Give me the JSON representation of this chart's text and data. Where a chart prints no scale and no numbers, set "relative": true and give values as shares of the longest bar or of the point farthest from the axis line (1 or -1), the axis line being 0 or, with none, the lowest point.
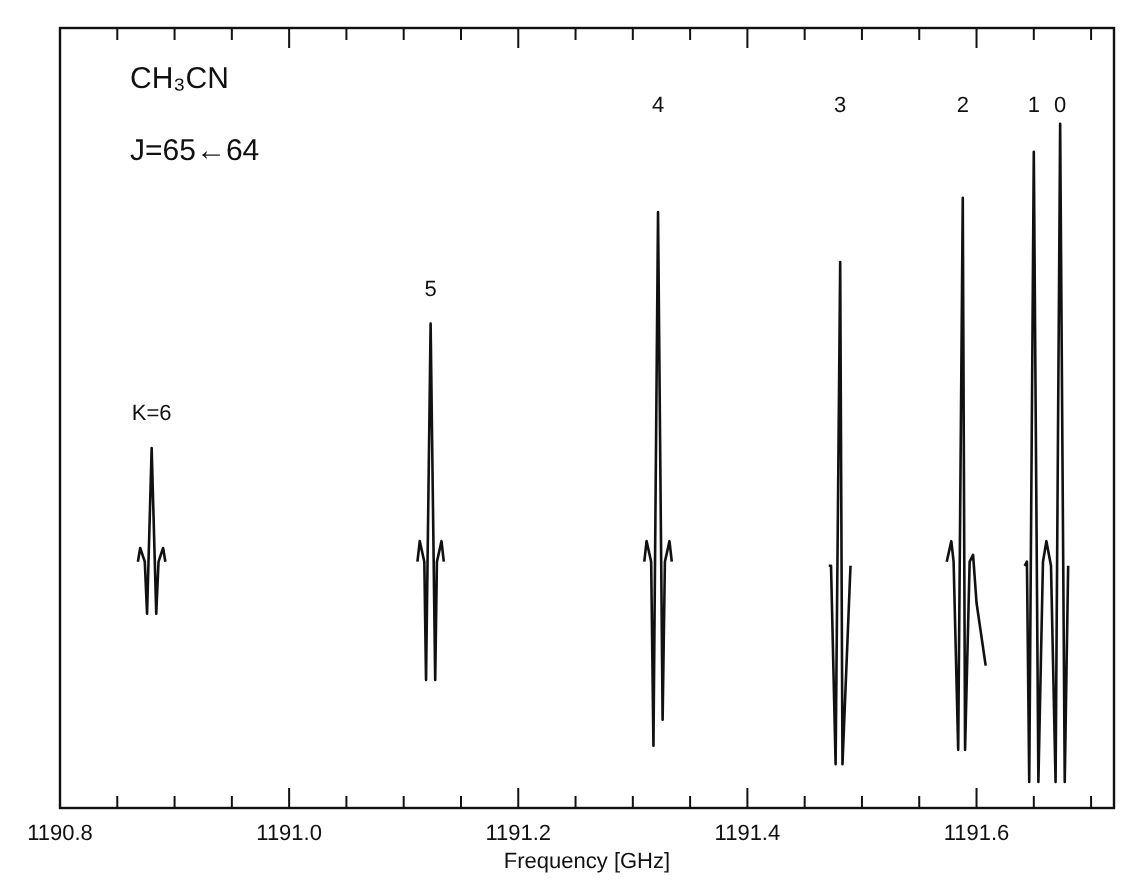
{
  "chart_data": {
    "type": "line",
    "relative": true,
    "xlabel": "Frequency [GHz]",
    "xlim": [
      1190.8,
      1191.72
    ],
    "xticks": [
      1190.8,
      {
        "value": 1190.85,
        "label": null
      },
      {
        "value": 1190.9,
        "label": null
      },
      {
        "value": 1190.95,
        "label": null
      },
      {
        "value": 1191.0,
        "label": "1191.0"
      },
      {
        "value": 1191.05,
        "label": null
      },
      {
        "value": 1191.1,
        "label": null
      },
      {
        "value": 1191.15,
        "label": null
      },
      1191.2,
      {
        "value": 1191.25,
        "label": null
      },
      {
        "value": 1191.3,
        "label": null
      },
      {
        "value": 1191.35,
        "label": null
      },
      1191.4,
      {
        "value": 1191.45,
        "label": null
      },
      {
        "value": 1191.5,
        "label": null
      },
      {
        "value": 1191.55,
        "label": null
      },
      1191.6,
      {
        "value": 1191.65,
        "label": null
      },
      {
        "value": 1191.7,
        "label": null
      }
    ],
    "grid": false,
    "marker": "none",
    "line_style": "solid",
    "series": [
      {
        "color": "#111111",
        "x": [
          1190.868,
          1190.87,
          1190.874,
          1190.876,
          1190.88,
          1190.884,
          1190.886,
          1190.89,
          1190.892,
          1190.9,
          1191.112,
          1191.114,
          1191.118,
          1191.1195,
          1191.1235,
          1191.1275,
          1191.129,
          1191.133,
          1191.135,
          1191.14,
          1191.31,
          1191.312,
          1191.316,
          1191.318,
          1191.322,
          1191.326,
          1191.328,
          1191.332,
          1191.334,
          1191.34,
          1191.471,
          1191.473,
          1191.477,
          1191.481,
          1191.483,
          1191.49,
          1191.572,
          1191.574,
          1191.578,
          1191.58,
          1191.584,
          1191.588,
          1191.59,
          1191.594,
          1191.597,
          1191.6,
          1191.608,
          1191.62,
          1191.642,
          1191.644,
          1191.646,
          1191.65,
          1191.654,
          1191.658,
          1191.661,
          1191.665,
          1191.669,
          1191.673,
          1191.677,
          1191.68
        ],
        "values": [
          0.36,
          0.38,
          0.36,
          0.284,
          0.526,
          0.284,
          0.36,
          0.38,
          0.36,
          null,
          0.36,
          0.39,
          0.36,
          0.187,
          0.708,
          0.187,
          0.36,
          0.39,
          0.36,
          null,
          0.36,
          0.39,
          0.36,
          0.091,
          0.871,
          0.129,
          0.36,
          0.39,
          0.36,
          null,
          0.354,
          0.354,
          0.064,
          0.798,
          0.064,
          0.354,
          null,
          0.36,
          0.39,
          0.36,
          0.085,
          0.892,
          0.085,
          0.36,
          0.37,
          0.3,
          0.208,
          null,
          0.354,
          0.36,
          0.038,
          0.959,
          0.038,
          0.36,
          0.39,
          0.354,
          0.038,
          1.0,
          0.038,
          0.354
        ]
      }
    ],
    "annotations": [
      "CH₃CN",
      "J=65←64",
      "K=6",
      "5",
      "4",
      "3",
      "2",
      "1",
      "0"
    ]
  }
}
